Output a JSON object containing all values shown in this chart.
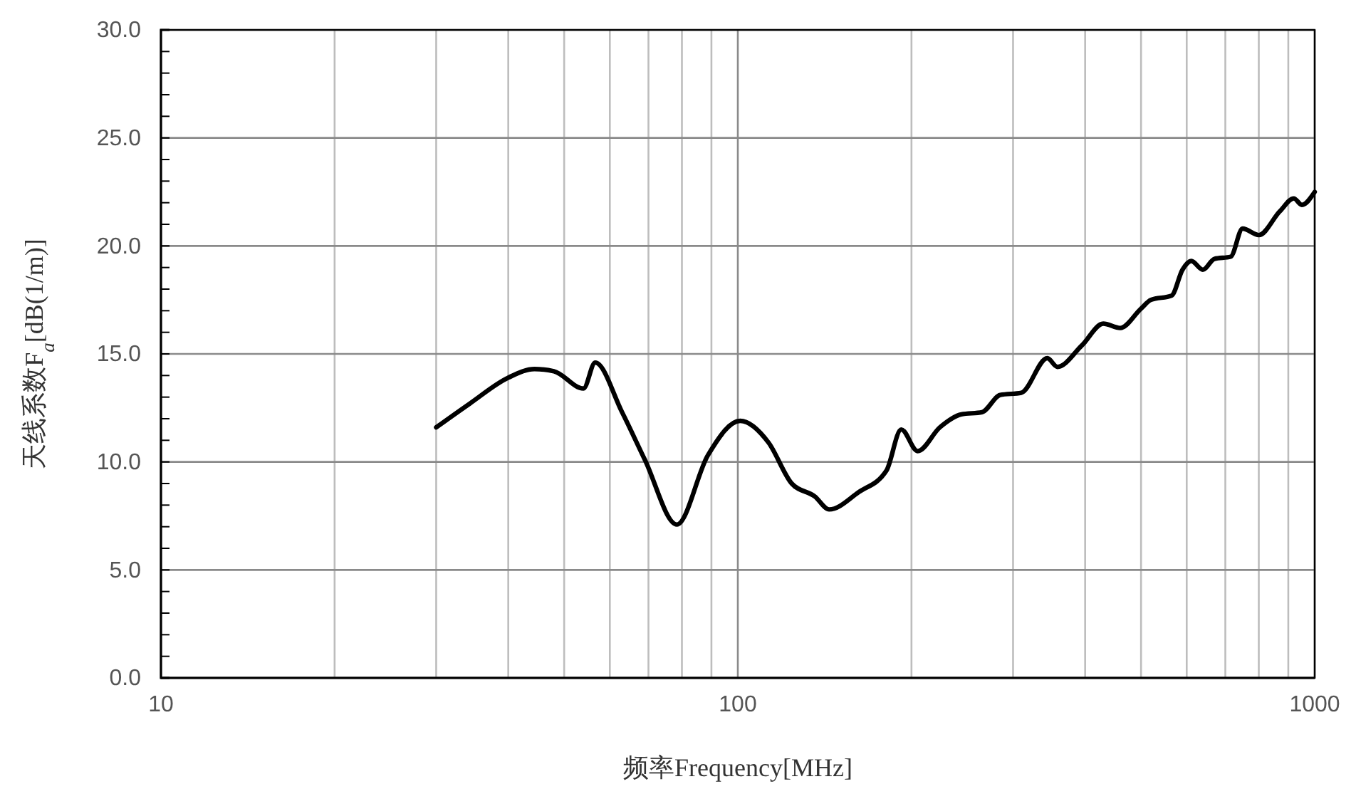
{
  "chart_data": {
    "type": "line",
    "xlabel": "频率Frequency[MHz]",
    "ylabel": "天线系数F$_{a}$[dB(1/m)]",
    "log": "x",
    "grid": true,
    "marker": "none",
    "line_style": "solid",
    "xlim": [
      10,
      1000
    ],
    "ylim": [
      0,
      30
    ],
    "xticks": [
      10,
      {
        "value": 20,
        "label": null
      },
      {
        "value": 30,
        "label": null
      },
      {
        "value": 40,
        "label": null
      },
      {
        "value": 50,
        "label": null
      },
      {
        "value": 60,
        "label": null
      },
      {
        "value": 70,
        "label": null
      },
      {
        "value": 80,
        "label": null
      },
      {
        "value": 90,
        "label": null
      },
      100,
      {
        "value": 200,
        "label": null
      },
      {
        "value": 300,
        "label": null
      },
      {
        "value": 400,
        "label": null
      },
      {
        "value": 500,
        "label": null
      },
      {
        "value": 600,
        "label": null
      },
      {
        "value": 700,
        "label": null
      },
      {
        "value": 800,
        "label": null
      },
      {
        "value": 900,
        "label": null
      },
      1000
    ],
    "yticks": [
      {
        "value": 0,
        "label": "0.0"
      },
      {
        "value": 1,
        "label": null
      },
      {
        "value": 2,
        "label": null
      },
      {
        "value": 3,
        "label": null
      },
      {
        "value": 4,
        "label": null
      },
      {
        "value": 5,
        "label": "5.0"
      },
      {
        "value": 6,
        "label": null
      },
      {
        "value": 7,
        "label": null
      },
      {
        "value": 8,
        "label": null
      },
      {
        "value": 9,
        "label": null
      },
      {
        "value": 10,
        "label": "10.0"
      },
      {
        "value": 11,
        "label": null
      },
      {
        "value": 12,
        "label": null
      },
      {
        "value": 13,
        "label": null
      },
      {
        "value": 14,
        "label": null
      },
      {
        "value": 15,
        "label": "15.0"
      },
      {
        "value": 16,
        "label": null
      },
      {
        "value": 17,
        "label": null
      },
      {
        "value": 18,
        "label": null
      },
      {
        "value": 19,
        "label": null
      },
      {
        "value": 20,
        "label": "20.0"
      },
      {
        "value": 21,
        "label": null
      },
      {
        "value": 22,
        "label": null
      },
      {
        "value": 23,
        "label": null
      },
      {
        "value": 24,
        "label": null
      },
      {
        "value": 25,
        "label": "25.0"
      },
      {
        "value": 26,
        "label": null
      },
      {
        "value": 27,
        "label": null
      },
      {
        "value": 28,
        "label": null
      },
      {
        "value": 29,
        "label": null
      },
      {
        "value": 30,
        "label": "30.0"
      }
    ],
    "x": [
      30,
      34.3,
      40,
      44.4,
      48,
      54,
      56.6,
      63,
      69,
      78.4,
      88.7,
      101,
      113,
      124,
      136,
      144,
      162,
      181,
      192,
      205,
      224,
      244,
      265,
      285,
      310,
      344,
      358,
      395,
      430,
      460,
      500,
      520,
      565,
      590,
      611,
      640,
      670,
      715,
      750,
      800,
      870,
      920,
      950,
      1000
    ],
    "series": [
      {
        "color": "#000000",
        "values": [
          11.6,
          12.7,
          13.9,
          14.3,
          14.2,
          13.4,
          14.6,
          12.3,
          10.1,
          7.1,
          10.3,
          11.9,
          10.9,
          9.0,
          8.4,
          7.8,
          8.6,
          9.6,
          11.5,
          10.5,
          11.6,
          12.2,
          12.3,
          13.1,
          13.2,
          14.8,
          14.4,
          15.4,
          16.4,
          16.2,
          17.1,
          17.5,
          17.7,
          18.9,
          19.3,
          18.9,
          19.4,
          19.5,
          20.8,
          20.5,
          21.6,
          22.2,
          21.9,
          22.5
        ]
      }
    ]
  }
}
